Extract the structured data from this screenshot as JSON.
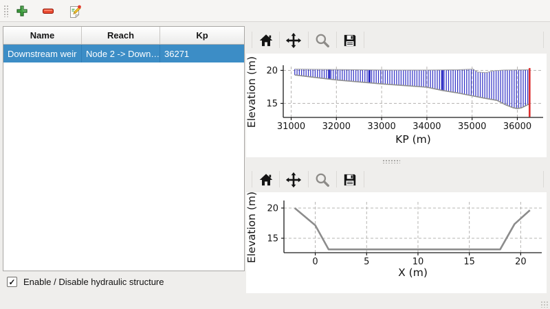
{
  "main_toolbar": {
    "buttons": [
      {
        "id": "add-structure",
        "icon": "plus-icon",
        "color": "#3fa03f"
      },
      {
        "id": "remove-structure",
        "icon": "minus-icon",
        "color": "#e8492f"
      },
      {
        "id": "edit-structure",
        "icon": "edit-pencil-icon",
        "color": "#f2c230"
      }
    ]
  },
  "structures_table": {
    "columns": [
      "Name",
      "Reach",
      "Kp"
    ],
    "rows": [
      {
        "name": "Downstream weir",
        "reach": "Node 2 -> Down…",
        "kp": "36271"
      }
    ],
    "selected_row_index": 0,
    "selection_color": "#3c8dc6"
  },
  "enable_checkbox": {
    "label": "Enable / Disable hydraulic structure",
    "checked": true,
    "check_glyph": "✓"
  },
  "plot_toolbars": {
    "icons": [
      "home",
      "pan",
      "zoom-to-rect",
      "save"
    ]
  },
  "chart_data": [
    {
      "type": "line",
      "xlabel": "KP (m)",
      "ylabel": "Elevation (m)",
      "xlim": [
        30825,
        36570
      ],
      "ylim": [
        12.87,
        20.57
      ],
      "xticks": [
        31000,
        32000,
        33000,
        34000,
        35000,
        36000
      ],
      "yticks": [
        15,
        20
      ],
      "grid": true,
      "legend": false,
      "series": [
        {
          "name": "bank-top-line",
          "color": "#a2a2a2",
          "width": 1,
          "points": [
            [
              31080,
              20.2
            ],
            [
              31600,
              20.15
            ],
            [
              32400,
              20.1
            ],
            [
              33200,
              20.05
            ],
            [
              34000,
              20.05
            ],
            [
              34700,
              20.1
            ],
            [
              35020,
              20.2
            ],
            [
              35120,
              19.75
            ],
            [
              35300,
              19.65
            ],
            [
              35480,
              19.95
            ],
            [
              35700,
              20.05
            ],
            [
              36260,
              20.1
            ]
          ]
        },
        {
          "name": "bed-profile-line",
          "color": "#8f8f8f",
          "width": 1.6,
          "points": [
            [
              31080,
              19.3
            ],
            [
              31500,
              18.95
            ],
            [
              32000,
              18.55
            ],
            [
              32500,
              18.25
            ],
            [
              33000,
              17.95
            ],
            [
              33500,
              17.7
            ],
            [
              34000,
              17.45
            ],
            [
              34350,
              16.95
            ],
            [
              34700,
              16.55
            ],
            [
              35000,
              16.15
            ],
            [
              35300,
              15.75
            ],
            [
              35550,
              15.45
            ],
            [
              35750,
              14.75
            ],
            [
              35900,
              14.35
            ],
            [
              36000,
              14.2
            ],
            [
              36100,
              14.35
            ],
            [
              36200,
              14.7
            ],
            [
              36260,
              14.9
            ]
          ]
        }
      ],
      "cross_section_markers": {
        "color": "#2b2bc4",
        "from": 31080,
        "to": 36260,
        "step": 50,
        "extra": [
          31825,
          31840,
          31855,
          32715,
          32730,
          32745,
          34325,
          34340,
          34355
        ],
        "top_series": 0,
        "bottom_series": 1
      },
      "structure_line": {
        "name": "weir-position-line",
        "x": 36271,
        "color": "#dd2d2d",
        "y0": 12.95,
        "y1": 20.35
      }
    },
    {
      "type": "line",
      "xlabel": "X (m)",
      "ylabel": "Elevation (m)",
      "xlim": [
        -3.05,
        22.05
      ],
      "ylim": [
        12.61,
        21.02
      ],
      "xticks": [
        0,
        5,
        10,
        15,
        20
      ],
      "yticks": [
        15,
        20
      ],
      "grid": true,
      "legend": false,
      "series": [
        {
          "name": "cross-section-line",
          "color": "#8c8c8c",
          "width": 2.6,
          "points": [
            [
              -2,
              20
            ],
            [
              0,
              17.15
            ],
            [
              1.3,
              13.15
            ],
            [
              18,
              13.15
            ],
            [
              19.4,
              17.35
            ],
            [
              20.9,
              19.65
            ]
          ]
        }
      ]
    }
  ]
}
